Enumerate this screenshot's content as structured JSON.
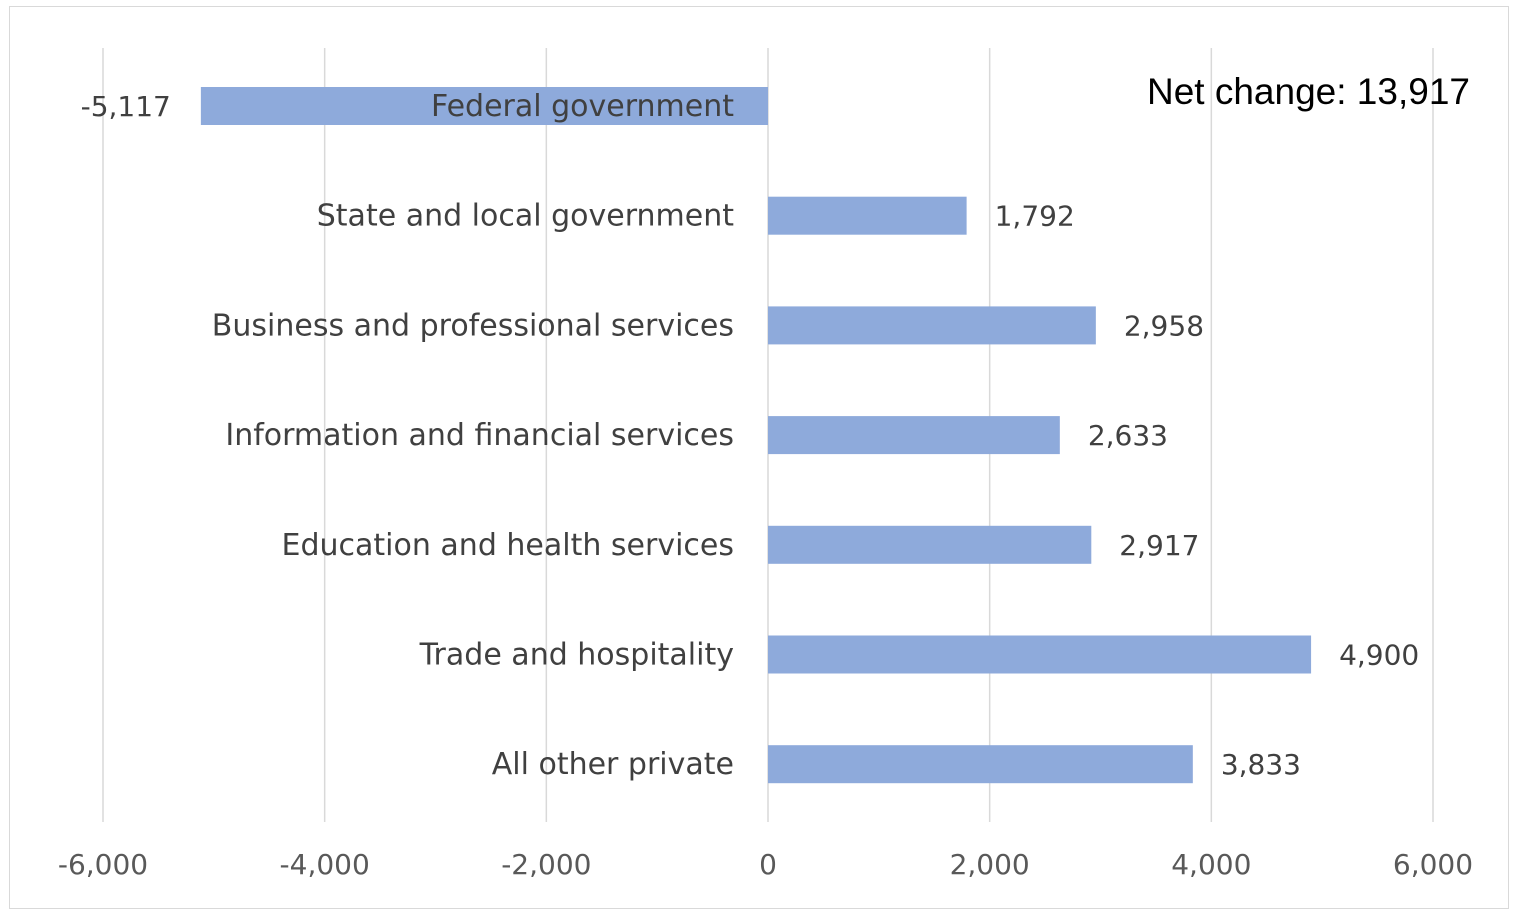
{
  "chart_data": {
    "type": "bar",
    "orientation": "horizontal",
    "categories": [
      "Federal government",
      "State and local government",
      "Business and professional services",
      "Information and financial services",
      "Education and health services",
      "Trade and hospitality",
      "All other private"
    ],
    "values": [
      -5117,
      1792,
      2958,
      2633,
      2917,
      4900,
      3833
    ],
    "data_labels": [
      "-5,117",
      "1,792",
      "2,958",
      "2,633",
      "2,917",
      "4,900",
      "3,833"
    ],
    "xlim": [
      -6000,
      6000
    ],
    "x_ticks": [
      -6000,
      -4000,
      -2000,
      0,
      2000,
      4000,
      6000
    ],
    "x_tick_labels": [
      "-6,000",
      "-4,000",
      "-2,000",
      "0",
      "2,000",
      "4,000",
      "6,000"
    ],
    "grid": true,
    "legend": "none",
    "title": "",
    "xlabel": "",
    "ylabel": "",
    "annotation": "Net change: 13,917",
    "colors": {
      "bar": "#8eaadb",
      "grid": "#d9d9d9",
      "text": "#404040",
      "tick": "#595959"
    }
  }
}
